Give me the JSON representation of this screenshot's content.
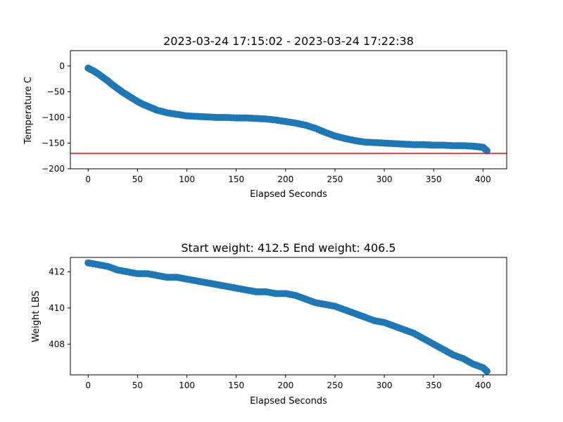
{
  "chart_data": [
    {
      "type": "scatter",
      "title": "2023-03-24 17:15:02 - 2023-03-24 17:22:38",
      "xlabel": "Elapsed Seconds",
      "ylabel": "Temperature C",
      "xlim": [
        -18,
        424
      ],
      "ylim": [
        -200,
        30
      ],
      "xticks": [
        0,
        50,
        100,
        150,
        200,
        250,
        300,
        350,
        400
      ],
      "yticks": [
        0,
        -50,
        -100,
        -150,
        -200
      ],
      "reference_line": {
        "y": -170,
        "color": "#d62728"
      },
      "color": "#1f77b4",
      "x": [
        0,
        5,
        10,
        15,
        20,
        25,
        30,
        35,
        40,
        45,
        50,
        55,
        60,
        65,
        70,
        80,
        90,
        100,
        110,
        120,
        130,
        140,
        150,
        160,
        170,
        180,
        190,
        200,
        210,
        220,
        230,
        240,
        250,
        260,
        270,
        280,
        290,
        300,
        310,
        320,
        330,
        340,
        350,
        360,
        370,
        380,
        390,
        395,
        400,
        404
      ],
      "y": [
        -4,
        -9,
        -15,
        -22,
        -29,
        -37,
        -44,
        -51,
        -57,
        -63,
        -69,
        -74,
        -78,
        -82,
        -86,
        -91,
        -94,
        -97,
        -98,
        -99,
        -100,
        -100,
        -101,
        -101,
        -102,
        -103,
        -105,
        -108,
        -111,
        -115,
        -121,
        -129,
        -136,
        -141,
        -145,
        -148,
        -149,
        -150,
        -151,
        -152,
        -153,
        -153,
        -154,
        -154,
        -155,
        -155,
        -156,
        -157,
        -158,
        -165
      ]
    },
    {
      "type": "scatter",
      "title": "Start weight: 412.5 End weight: 406.5",
      "xlabel": "Elapsed Seconds",
      "ylabel": "Weight LBS",
      "xlim": [
        -18,
        424
      ],
      "ylim": [
        406.3,
        412.8
      ],
      "xticks": [
        0,
        50,
        100,
        150,
        200,
        250,
        300,
        350,
        400
      ],
      "yticks": [
        412,
        410,
        408
      ],
      "color": "#1f77b4",
      "x": [
        0,
        10,
        20,
        30,
        40,
        50,
        60,
        70,
        80,
        90,
        100,
        110,
        120,
        130,
        140,
        150,
        160,
        170,
        180,
        190,
        200,
        210,
        220,
        230,
        240,
        250,
        260,
        270,
        280,
        290,
        300,
        310,
        320,
        330,
        340,
        350,
        360,
        370,
        380,
        390,
        400,
        404
      ],
      "y": [
        412.5,
        412.4,
        412.3,
        412.1,
        412.0,
        411.9,
        411.9,
        411.8,
        411.7,
        411.7,
        411.6,
        411.5,
        411.4,
        411.3,
        411.2,
        411.1,
        411.0,
        410.9,
        410.9,
        410.8,
        410.8,
        410.7,
        410.5,
        410.3,
        410.2,
        410.1,
        409.9,
        409.7,
        409.5,
        409.3,
        409.2,
        409.0,
        408.8,
        408.6,
        408.3,
        408.0,
        407.7,
        407.4,
        407.2,
        406.9,
        406.7,
        406.5
      ]
    }
  ]
}
